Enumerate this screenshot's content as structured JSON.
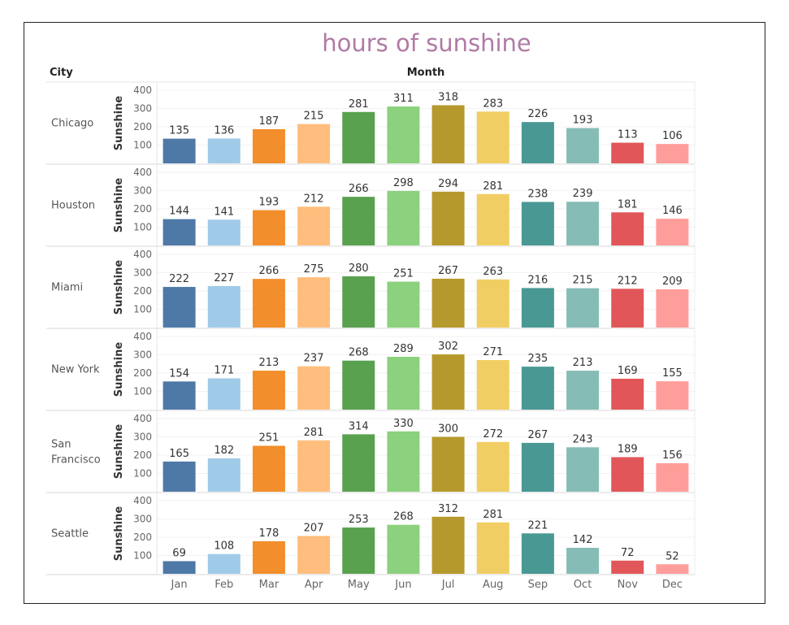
{
  "title": "hours of sunshine",
  "row_header": "City",
  "column_header": "Month",
  "chart_data": {
    "type": "bar",
    "title": "hours of sunshine",
    "ylabel": "Sunshine",
    "xlabel": "",
    "ylim": [
      0,
      400
    ],
    "yticks": [
      100,
      200,
      300,
      400
    ],
    "categories": [
      "Jan",
      "Feb",
      "Mar",
      "Apr",
      "May",
      "Jun",
      "Jul",
      "Aug",
      "Sep",
      "Oct",
      "Nov",
      "Dec"
    ],
    "colors": [
      "#4e79a7",
      "#a0cbe8",
      "#f28e2b",
      "#ffbe7d",
      "#59a14f",
      "#8cd17d",
      "#b6992d",
      "#f1ce63",
      "#499894",
      "#86bcb6",
      "#e15759",
      "#ff9d9a"
    ],
    "series": [
      {
        "name": "Chicago",
        "values": [
          135,
          136,
          187,
          215,
          281,
          311,
          318,
          283,
          226,
          193,
          113,
          106
        ]
      },
      {
        "name": "Houston",
        "values": [
          144,
          141,
          193,
          212,
          266,
          298,
          294,
          281,
          238,
          239,
          181,
          146
        ]
      },
      {
        "name": "Miami",
        "values": [
          222,
          227,
          266,
          275,
          280,
          251,
          267,
          263,
          216,
          215,
          212,
          209
        ]
      },
      {
        "name": "New York",
        "values": [
          154,
          171,
          213,
          237,
          268,
          289,
          302,
          271,
          235,
          213,
          169,
          155
        ]
      },
      {
        "name": "San Francisco",
        "values": [
          165,
          182,
          251,
          281,
          314,
          330,
          300,
          272,
          267,
          243,
          189,
          156
        ]
      },
      {
        "name": "Seattle",
        "values": [
          69,
          108,
          178,
          207,
          253,
          268,
          312,
          281,
          221,
          142,
          72,
          52
        ]
      }
    ]
  }
}
